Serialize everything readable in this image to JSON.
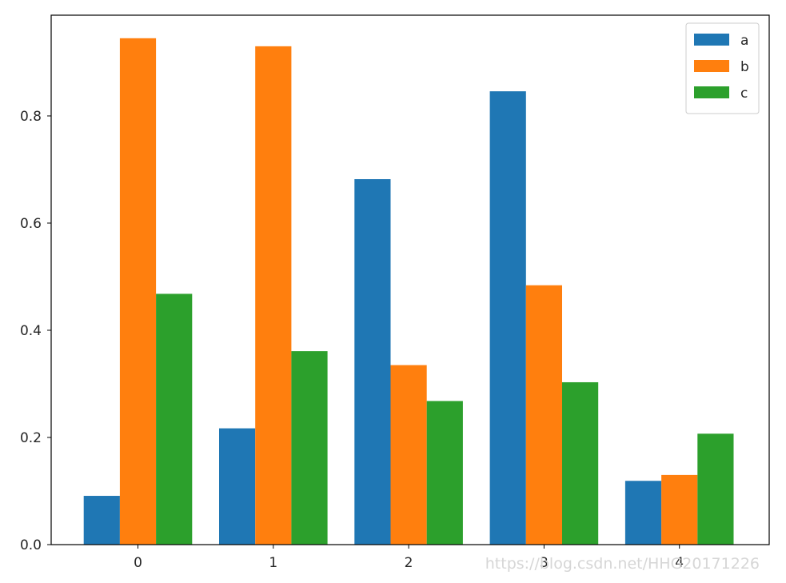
{
  "chart_data": {
    "type": "bar",
    "title": "",
    "xlabel": "",
    "ylabel": "",
    "categories": [
      "0",
      "1",
      "2",
      "3",
      "4"
    ],
    "series": [
      {
        "name": "a",
        "color": "#1f77b4",
        "values": [
          0.091,
          0.217,
          0.682,
          0.846,
          0.119
        ]
      },
      {
        "name": "b",
        "color": "#ff7f0e",
        "values": [
          0.945,
          0.93,
          0.335,
          0.484,
          0.13
        ]
      },
      {
        "name": "c",
        "color": "#2ca02c",
        "values": [
          0.468,
          0.361,
          0.268,
          0.303,
          0.207
        ]
      }
    ],
    "ylim": [
      0,
      0.988
    ],
    "yticks": [
      0.0,
      0.2,
      0.4,
      0.6,
      0.8
    ],
    "ytick_labels": [
      "0.0",
      "0.2",
      "0.4",
      "0.6",
      "0.8"
    ],
    "legend_position": "top-right",
    "grid": false
  },
  "watermark": "https://blog.csdn.net/HHG20171226"
}
